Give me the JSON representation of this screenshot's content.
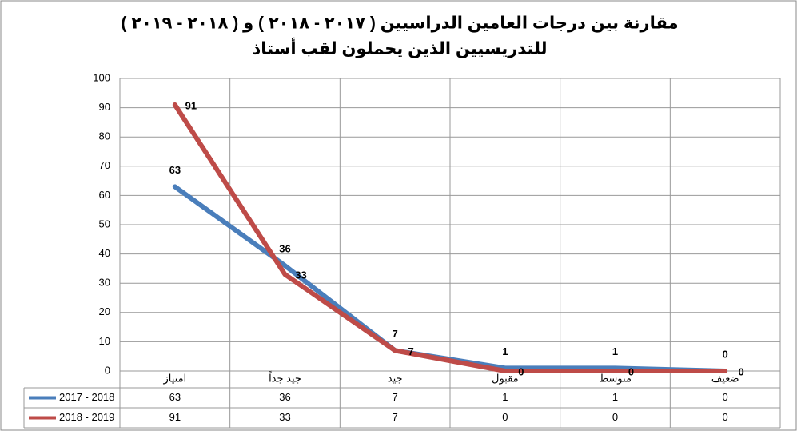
{
  "chart_data": {
    "type": "line",
    "title": "مقارنة بين درجات العامين الدراسيين ( ٢٠١٧ - ٢٠١٨ ) و ( ٢٠١٨ - ٢٠١٩ )",
    "subtitle": "للتدريسيين الذين يحملون لقب أستاذ",
    "categories": [
      "امتياز",
      "جيد جداً",
      "جيد",
      "مقبول",
      "متوسط",
      "ضعيف"
    ],
    "series": [
      {
        "name": "2017 - 2018",
        "color": "#4a7ebb",
        "values": [
          63,
          36,
          7,
          1,
          1,
          0
        ]
      },
      {
        "name": "2018 - 2019",
        "color": "#be4b48",
        "values": [
          91,
          33,
          7,
          0,
          0,
          0
        ]
      }
    ],
    "ylim": [
      0,
      100
    ],
    "yticks": [
      0,
      10,
      20,
      30,
      40,
      50,
      60,
      70,
      80,
      90,
      100
    ],
    "grid": true
  }
}
